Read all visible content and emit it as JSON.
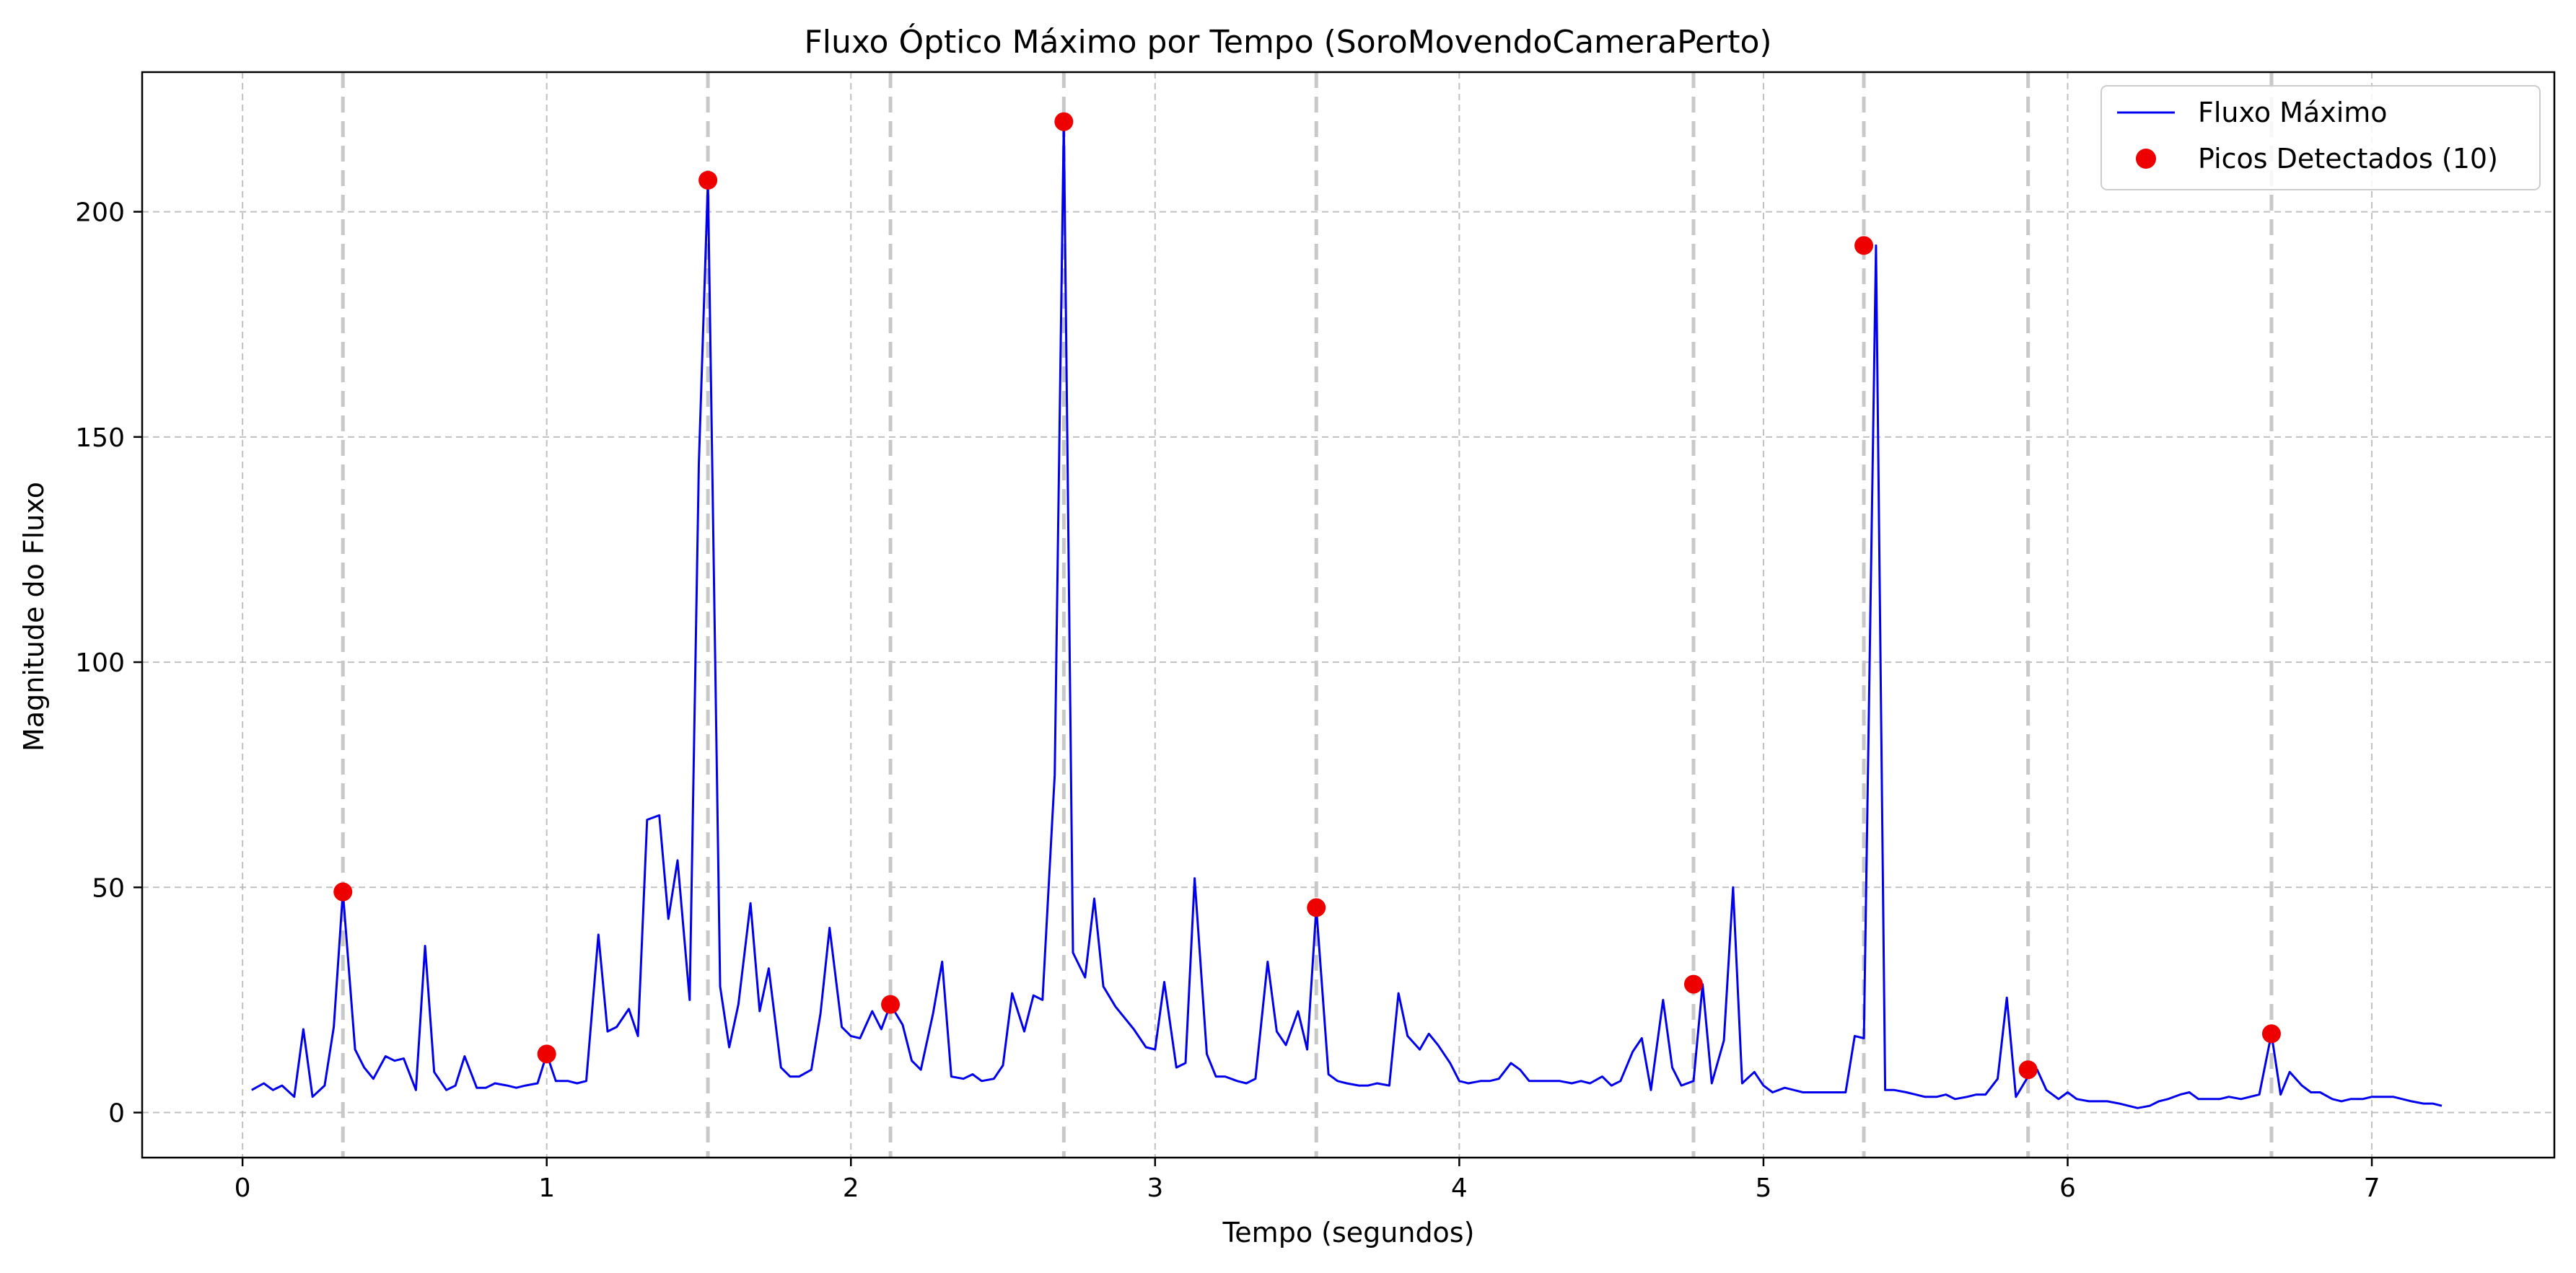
{
  "chart_data": {
    "type": "line",
    "title": "Fluxo Óptico Máximo por Tempo (SoroMovendoCameraPerto)",
    "xlabel": "Tempo (segundos)",
    "ylabel": "Magnitude do Fluxo",
    "xlim": [
      -0.33,
      7.6
    ],
    "ylim": [
      -10,
      231
    ],
    "xticks": [
      0,
      1,
      2,
      3,
      4,
      5,
      6,
      7
    ],
    "xtick_labels": [
      "0",
      "1",
      "2",
      "3",
      "4",
      "5",
      "6",
      "7"
    ],
    "yticks": [
      0,
      50,
      100,
      150,
      200
    ],
    "ytick_labels": [
      "0",
      "50",
      "100",
      "150",
      "200"
    ],
    "grid": true,
    "legend_position": "top-right",
    "series": [
      {
        "name": "Fluxo Máximo",
        "kind": "line",
        "color": "#0000ee",
        "points": [
          [
            0.03,
            5
          ],
          [
            0.07,
            6.5
          ],
          [
            0.1,
            5
          ],
          [
            0.13,
            6
          ],
          [
            0.17,
            3.5
          ],
          [
            0.2,
            18.5
          ],
          [
            0.23,
            3.5
          ],
          [
            0.27,
            6
          ],
          [
            0.3,
            19
          ],
          [
            0.33,
            49
          ],
          [
            0.37,
            14
          ],
          [
            0.4,
            10
          ],
          [
            0.43,
            7.5
          ],
          [
            0.47,
            12.5
          ],
          [
            0.5,
            11.5
          ],
          [
            0.53,
            12
          ],
          [
            0.57,
            5
          ],
          [
            0.6,
            37
          ],
          [
            0.63,
            9
          ],
          [
            0.67,
            5
          ],
          [
            0.7,
            6
          ],
          [
            0.73,
            12.5
          ],
          [
            0.77,
            5.5
          ],
          [
            0.8,
            5.5
          ],
          [
            0.83,
            6.5
          ],
          [
            0.87,
            6
          ],
          [
            0.9,
            5.5
          ],
          [
            0.93,
            6
          ],
          [
            0.97,
            6.5
          ],
          [
            1.0,
            13
          ],
          [
            1.03,
            7
          ],
          [
            1.07,
            7
          ],
          [
            1.1,
            6.5
          ],
          [
            1.13,
            7
          ],
          [
            1.17,
            39.5
          ],
          [
            1.2,
            18
          ],
          [
            1.23,
            19
          ],
          [
            1.27,
            23
          ],
          [
            1.3,
            17
          ],
          [
            1.33,
            65
          ],
          [
            1.37,
            66
          ],
          [
            1.4,
            43
          ],
          [
            1.43,
            56
          ],
          [
            1.47,
            25
          ],
          [
            1.5,
            144
          ],
          [
            1.53,
            207
          ],
          [
            1.57,
            28
          ],
          [
            1.6,
            14.5
          ],
          [
            1.63,
            24
          ],
          [
            1.67,
            46.5
          ],
          [
            1.7,
            22.5
          ],
          [
            1.73,
            32
          ],
          [
            1.77,
            10
          ],
          [
            1.8,
            8
          ],
          [
            1.83,
            8
          ],
          [
            1.87,
            9.5
          ],
          [
            1.9,
            22
          ],
          [
            1.93,
            41
          ],
          [
            1.97,
            19
          ],
          [
            2.0,
            17
          ],
          [
            2.03,
            16.5
          ],
          [
            2.07,
            22.5
          ],
          [
            2.1,
            18.5
          ],
          [
            2.13,
            24
          ],
          [
            2.17,
            19.5
          ],
          [
            2.2,
            11.5
          ],
          [
            2.23,
            9.5
          ],
          [
            2.27,
            22
          ],
          [
            2.3,
            33.5
          ],
          [
            2.33,
            8
          ],
          [
            2.37,
            7.5
          ],
          [
            2.4,
            8.5
          ],
          [
            2.43,
            7
          ],
          [
            2.47,
            7.5
          ],
          [
            2.5,
            10.5
          ],
          [
            2.53,
            26.5
          ],
          [
            2.57,
            18
          ],
          [
            2.6,
            26
          ],
          [
            2.63,
            25
          ],
          [
            2.67,
            75
          ],
          [
            2.7,
            220
          ],
          [
            2.73,
            35.5
          ],
          [
            2.77,
            30
          ],
          [
            2.8,
            47.5
          ],
          [
            2.83,
            28
          ],
          [
            2.87,
            23.5
          ],
          [
            2.9,
            21
          ],
          [
            2.93,
            18.5
          ],
          [
            2.97,
            14.5
          ],
          [
            3.0,
            14
          ],
          [
            3.03,
            29
          ],
          [
            3.07,
            10
          ],
          [
            3.1,
            11
          ],
          [
            3.13,
            52
          ],
          [
            3.17,
            13
          ],
          [
            3.2,
            8
          ],
          [
            3.23,
            8
          ],
          [
            3.27,
            7
          ],
          [
            3.3,
            6.5
          ],
          [
            3.33,
            7.5
          ],
          [
            3.37,
            33.5
          ],
          [
            3.4,
            18
          ],
          [
            3.43,
            15
          ],
          [
            3.47,
            22.5
          ],
          [
            3.5,
            14
          ],
          [
            3.53,
            45.5
          ],
          [
            3.57,
            8.5
          ],
          [
            3.6,
            7
          ],
          [
            3.63,
            6.5
          ],
          [
            3.67,
            6
          ],
          [
            3.7,
            6
          ],
          [
            3.73,
            6.5
          ],
          [
            3.77,
            6
          ],
          [
            3.8,
            26.5
          ],
          [
            3.83,
            17
          ],
          [
            3.87,
            14
          ],
          [
            3.9,
            17.5
          ],
          [
            3.93,
            15
          ],
          [
            3.97,
            11
          ],
          [
            4.0,
            7
          ],
          [
            4.03,
            6.5
          ],
          [
            4.07,
            7
          ],
          [
            4.1,
            7
          ],
          [
            4.13,
            7.5
          ],
          [
            4.17,
            11
          ],
          [
            4.2,
            9.5
          ],
          [
            4.23,
            7
          ],
          [
            4.27,
            7
          ],
          [
            4.3,
            7
          ],
          [
            4.33,
            7
          ],
          [
            4.37,
            6.5
          ],
          [
            4.4,
            7
          ],
          [
            4.43,
            6.5
          ],
          [
            4.47,
            8
          ],
          [
            4.5,
            6
          ],
          [
            4.53,
            7
          ],
          [
            4.57,
            13.5
          ],
          [
            4.6,
            16.5
          ],
          [
            4.63,
            5
          ],
          [
            4.67,
            25
          ],
          [
            4.7,
            10
          ],
          [
            4.73,
            6
          ],
          [
            4.77,
            7
          ],
          [
            4.8,
            28.5
          ],
          [
            4.83,
            6.5
          ],
          [
            4.87,
            16
          ],
          [
            4.9,
            50
          ],
          [
            4.93,
            6.5
          ],
          [
            4.97,
            9
          ],
          [
            5.0,
            6
          ],
          [
            5.03,
            4.5
          ],
          [
            5.07,
            5.5
          ],
          [
            5.1,
            5
          ],
          [
            5.13,
            4.5
          ],
          [
            5.17,
            4.5
          ],
          [
            5.2,
            4.5
          ],
          [
            5.23,
            4.5
          ],
          [
            5.27,
            4.5
          ],
          [
            5.3,
            17
          ],
          [
            5.33,
            16.5
          ],
          [
            5.37,
            192.5
          ],
          [
            5.4,
            5
          ],
          [
            5.43,
            5
          ],
          [
            5.47,
            4.5
          ],
          [
            5.5,
            4
          ],
          [
            5.53,
            3.5
          ],
          [
            5.57,
            3.5
          ],
          [
            5.6,
            4
          ],
          [
            5.63,
            3
          ],
          [
            5.67,
            3.5
          ],
          [
            5.7,
            4
          ],
          [
            5.73,
            4
          ],
          [
            5.77,
            7.5
          ],
          [
            5.8,
            25.5
          ],
          [
            5.83,
            3.5
          ],
          [
            5.87,
            8
          ],
          [
            5.9,
            9.5
          ],
          [
            5.93,
            5
          ],
          [
            5.97,
            3
          ],
          [
            6.0,
            4.5
          ],
          [
            6.03,
            3
          ],
          [
            6.07,
            2.5
          ],
          [
            6.1,
            2.5
          ],
          [
            6.13,
            2.5
          ],
          [
            6.17,
            2
          ],
          [
            6.2,
            1.5
          ],
          [
            6.23,
            1
          ],
          [
            6.27,
            1.5
          ],
          [
            6.3,
            2.5
          ],
          [
            6.33,
            3
          ],
          [
            6.37,
            4
          ],
          [
            6.4,
            4.5
          ],
          [
            6.43,
            3
          ],
          [
            6.47,
            3
          ],
          [
            6.5,
            3
          ],
          [
            6.53,
            3.5
          ],
          [
            6.57,
            3
          ],
          [
            6.6,
            3.5
          ],
          [
            6.63,
            4
          ],
          [
            6.67,
            17.5
          ],
          [
            6.7,
            4
          ],
          [
            6.73,
            9
          ],
          [
            6.77,
            6
          ],
          [
            6.8,
            4.5
          ],
          [
            6.83,
            4.5
          ],
          [
            6.87,
            3
          ],
          [
            6.9,
            2.5
          ],
          [
            6.93,
            3
          ],
          [
            6.97,
            3
          ],
          [
            7.0,
            3.5
          ],
          [
            7.03,
            3.5
          ],
          [
            7.07,
            3.5
          ],
          [
            7.1,
            3
          ],
          [
            7.13,
            2.5
          ],
          [
            7.17,
            2
          ],
          [
            7.2,
            2
          ],
          [
            7.23,
            1.5
          ]
        ]
      },
      {
        "name": "Picos Detectados (10)",
        "kind": "scatter",
        "color": "#ee0000",
        "points": [
          [
            0.33,
            49
          ],
          [
            1.0,
            13
          ],
          [
            1.53,
            207
          ],
          [
            2.13,
            24
          ],
          [
            2.7,
            220
          ],
          [
            3.53,
            45.5
          ],
          [
            4.77,
            28.5
          ],
          [
            5.33,
            192.5
          ],
          [
            5.87,
            9.5
          ],
          [
            6.67,
            17.5
          ]
        ]
      }
    ],
    "vlines": [
      0.33,
      1.53,
      2.13,
      2.7,
      3.53,
      4.77,
      5.33,
      5.87,
      6.67
    ]
  }
}
